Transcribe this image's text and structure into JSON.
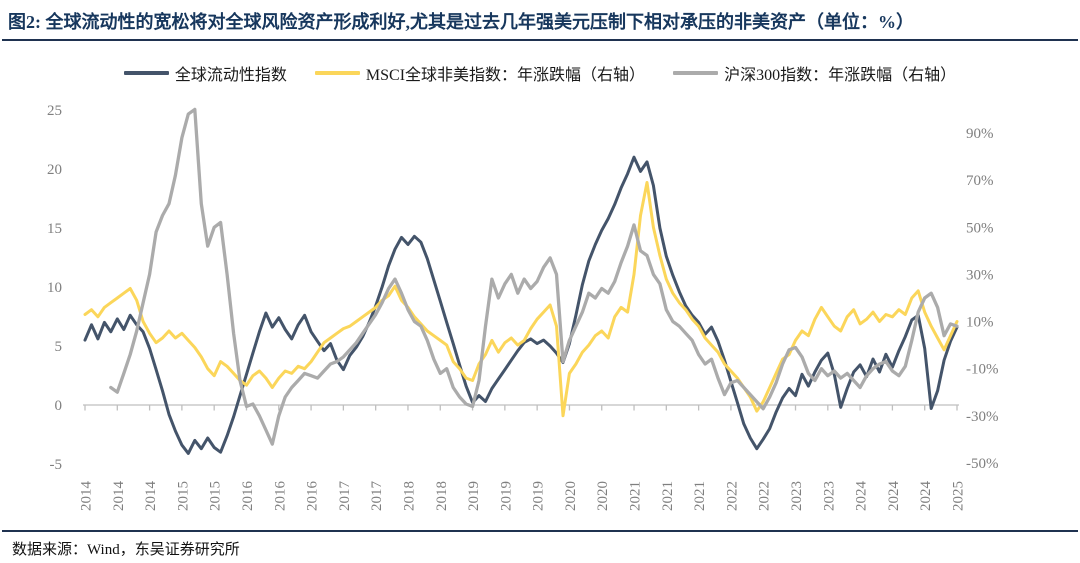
{
  "title": "图2:  全球流动性的宽松将对全球风险资产形成利好,尤其是过去几年强美元压制下相对承压的非美资产（单位：%）",
  "source": "数据来源：Wind，东吴证券研究所",
  "colors": {
    "title_navy": "#17375D",
    "rule": "#1F3250",
    "axis_text": "#7F7F7F",
    "axis_line": "#BFBFBF",
    "legend_text": "#1A1A1A"
  },
  "chart_data": {
    "type": "line",
    "title": "全球流动性与非美资产年涨跌幅",
    "x_start": "2014-01",
    "x_end": "2025-04",
    "x_frequency": "monthly",
    "x_tick_labels": [
      "2014",
      "2014",
      "2014",
      "2015",
      "2015",
      "2016",
      "2016",
      "2016",
      "2017",
      "2017",
      "2018",
      "2018",
      "2019",
      "2019",
      "2019",
      "2020",
      "2020",
      "2021",
      "2021",
      "2021",
      "2022",
      "2022",
      "2023",
      "2023",
      "2024",
      "2024",
      "2024",
      "2025"
    ],
    "left_axis": {
      "ticks": [
        25,
        20,
        15,
        10,
        5,
        0,
        -5
      ],
      "range": [
        -5,
        25
      ]
    },
    "right_axis": {
      "ticks": [
        90,
        70,
        50,
        30,
        10,
        -10,
        -30,
        -50
      ],
      "range": [
        -50,
        100
      ],
      "suffix": "%"
    },
    "grid": "zero-line-only",
    "legend_position": "top",
    "series": [
      {
        "name": "全球流动性指数",
        "axis": "left",
        "color": "#44546A",
        "values": [
          5.5,
          6.8,
          5.6,
          7.0,
          6.2,
          7.3,
          6.4,
          7.6,
          6.8,
          6.2,
          4.8,
          3.0,
          1.2,
          -0.8,
          -2.2,
          -3.4,
          -4.1,
          -3.0,
          -3.7,
          -2.8,
          -3.6,
          -4.0,
          -2.6,
          -1.0,
          0.8,
          2.6,
          4.4,
          6.2,
          7.8,
          6.6,
          7.4,
          6.4,
          5.6,
          6.8,
          7.6,
          6.2,
          5.4,
          4.6,
          5.2,
          3.8,
          3.0,
          4.2,
          4.9,
          5.8,
          7.0,
          8.4,
          10.0,
          11.8,
          13.2,
          14.2,
          13.6,
          14.3,
          13.8,
          12.4,
          10.6,
          8.8,
          7.0,
          5.2,
          3.4,
          1.6,
          0.2,
          0.8,
          0.3,
          1.4,
          2.2,
          3.0,
          3.8,
          4.6,
          5.3,
          5.6,
          5.2,
          5.5,
          5.0,
          4.4,
          3.6,
          5.2,
          7.6,
          10.2,
          12.2,
          13.6,
          14.8,
          15.8,
          17.0,
          18.4,
          19.6,
          21.0,
          19.8,
          20.6,
          18.6,
          15.0,
          12.6,
          11.0,
          9.6,
          8.4,
          7.6,
          7.0,
          6.0,
          6.6,
          5.4,
          3.8,
          2.0,
          0.2,
          -1.6,
          -2.8,
          -3.7,
          -2.9,
          -2.0,
          -0.6,
          0.6,
          1.4,
          0.8,
          2.6,
          1.6,
          2.8,
          3.8,
          4.4,
          2.6,
          -0.2,
          1.4,
          2.8,
          3.4,
          2.4,
          3.9,
          2.8,
          4.3,
          3.2,
          4.6,
          5.8,
          7.2,
          7.6,
          4.8,
          -0.3,
          1.2,
          3.8,
          5.4,
          6.6
        ]
      },
      {
        "name": "MSCI全球非美指数：年涨跌幅（右轴）",
        "axis": "right",
        "color": "#FBD65A",
        "values": [
          13,
          15,
          12,
          16,
          18,
          20,
          22,
          24,
          19,
          10,
          5,
          1,
          3,
          6,
          3,
          5,
          2,
          -1,
          -5,
          -10,
          -13,
          -7,
          -9,
          -12,
          -15,
          -17,
          -13,
          -11,
          -14,
          -18,
          -14,
          -11,
          -12,
          -9,
          -10,
          -7,
          -3,
          1,
          3,
          5,
          7,
          8,
          10,
          12,
          14,
          16,
          19,
          21,
          25,
          19,
          16,
          12,
          9,
          6,
          4,
          2,
          0,
          -7,
          -10,
          -14,
          -15,
          -8,
          -4,
          2,
          -3,
          1,
          3,
          0,
          2,
          7,
          11,
          14,
          17,
          8,
          -30,
          -12,
          -8,
          -3,
          0,
          4,
          6,
          3,
          12,
          16,
          14,
          30,
          55,
          69,
          50,
          38,
          28,
          22,
          18,
          15,
          11,
          8,
          3,
          0,
          -3,
          -8,
          -11,
          -14,
          -18,
          -22,
          -28,
          -24,
          -18,
          -12,
          -6,
          -4,
          2,
          6,
          4,
          11,
          16,
          12,
          8,
          6,
          12,
          15,
          9,
          11,
          14,
          10,
          13,
          12,
          15,
          13,
          20,
          23,
          14,
          8,
          3,
          -2,
          4,
          10
        ]
      },
      {
        "name": "沪深300指数：年涨跌幅（右轴）",
        "axis": "right",
        "color": "#ABABAB",
        "values": [
          null,
          null,
          null,
          null,
          -18,
          -20,
          -12,
          -4,
          6,
          18,
          30,
          48,
          55,
          60,
          72,
          88,
          98,
          100,
          60,
          42,
          50,
          52,
          30,
          5,
          -15,
          -26,
          -25,
          -30,
          -36,
          -42,
          -30,
          -22,
          -18,
          -15,
          -12,
          -13,
          -14,
          -11,
          -8,
          -7,
          -5,
          -2,
          1,
          5,
          9,
          13,
          18,
          24,
          28,
          22,
          15,
          10,
          8,
          2,
          -6,
          -12,
          -10,
          -18,
          -22,
          -25,
          -26,
          -15,
          8,
          28,
          20,
          26,
          30,
          22,
          28,
          24,
          27,
          33,
          37,
          30,
          -7,
          2,
          8,
          14,
          22,
          20,
          24,
          22,
          27,
          35,
          42,
          51,
          40,
          38,
          30,
          26,
          15,
          10,
          8,
          5,
          2,
          -4,
          -8,
          -6,
          -14,
          -21,
          -16,
          -15,
          -18,
          -21,
          -24,
          -27,
          -22,
          -16,
          -8,
          -2,
          -1,
          -5,
          -12,
          -15,
          -10,
          -13,
          -11,
          -14,
          -12,
          -15,
          -18,
          -13,
          -10,
          -8,
          -7,
          -11,
          -13,
          -9,
          2,
          14,
          20,
          22,
          16,
          4,
          9,
          8
        ]
      }
    ]
  }
}
